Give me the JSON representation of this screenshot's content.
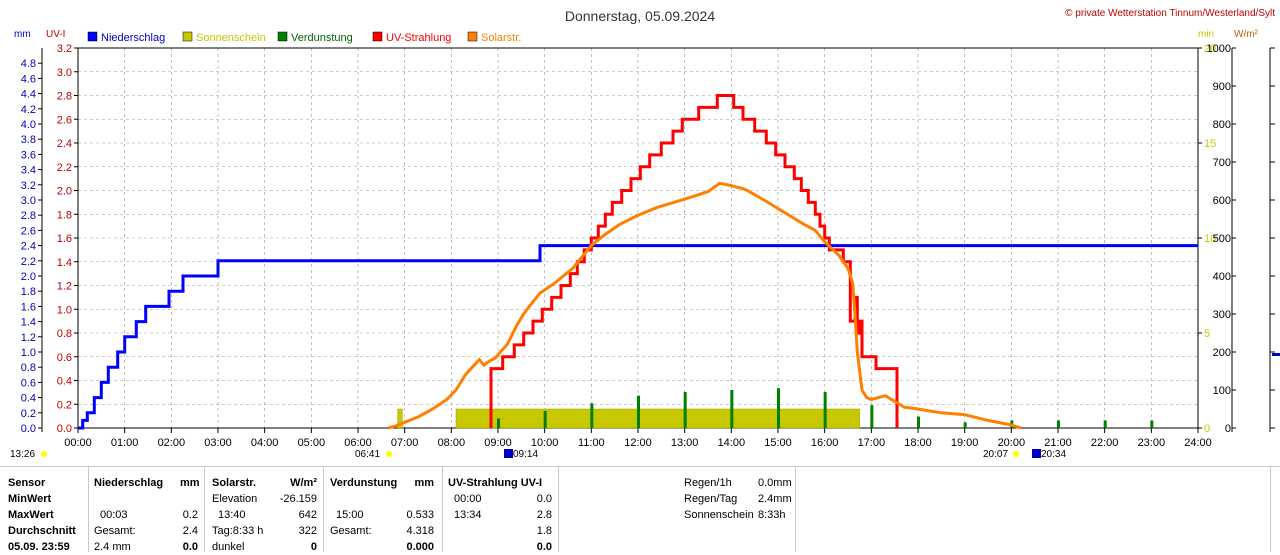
{
  "header": {
    "title": "Donnerstag, 05.09.2024",
    "copyright": "© private Wetterstation Tinnum/Westerland/Sylt",
    "unit_mm": "mm",
    "unit_uvi": "UV-I",
    "unit_min": "min",
    "unit_wm2": "W/m²"
  },
  "legend": [
    {
      "label": "Niederschlag",
      "color": "#0000ff",
      "text_color": "#0000c0"
    },
    {
      "label": "Sonnenschein",
      "color": "#c8c800",
      "text_color": "#c8c800"
    },
    {
      "label": "Verdunstung",
      "color": "#008000",
      "text_color": "#006400"
    },
    {
      "label": "UV-Strahlung",
      "color": "#ff0000",
      "text_color": "#ff0000"
    },
    {
      "label": "Solarstr.",
      "color": "#ff8000",
      "text_color": "#ff8000"
    }
  ],
  "chart_data": {
    "type": "line",
    "title": "Donnerstag, 05.09.2024",
    "x_ticks": [
      "00:00",
      "01:00",
      "02:00",
      "03:00",
      "04:00",
      "05:00",
      "06:00",
      "07:00",
      "08:00",
      "09:00",
      "10:00",
      "11:00",
      "12:00",
      "13:00",
      "14:00",
      "15:00",
      "16:00",
      "17:00",
      "18:00",
      "19:00",
      "20:00",
      "21:00",
      "22:00",
      "23:00",
      "24:00"
    ],
    "xlim_hours": [
      0,
      24
    ],
    "axes": {
      "mm": {
        "ylim": [
          0,
          5.0
        ],
        "ticks": [
          "0.0",
          "0.2",
          "0.4",
          "0.6",
          "0.8",
          "1.0",
          "1.2",
          "1.4",
          "1.6",
          "1.8",
          "2.0",
          "2.2",
          "2.4",
          "2.6",
          "2.8",
          "3.0",
          "3.2",
          "3.4",
          "3.6",
          "3.8",
          "4.0",
          "4.2",
          "4.4",
          "4.6",
          "4.8"
        ]
      },
      "uvi": {
        "ylim": [
          0,
          3.2
        ],
        "ticks": [
          "0.0",
          "0.2",
          "0.4",
          "0.6",
          "0.8",
          "1.0",
          "1.2",
          "1.4",
          "1.6",
          "1.8",
          "2.0",
          "2.2",
          "2.4",
          "2.6",
          "2.8",
          "3.0",
          "3.2"
        ]
      },
      "min": {
        "ylim": [
          0,
          20
        ],
        "ticks": [
          "0",
          "5",
          "10",
          "15",
          "20"
        ]
      },
      "wm2": {
        "ylim": [
          0,
          1000
        ],
        "ticks": [
          "0",
          "100",
          "200",
          "300",
          "400",
          "500",
          "600",
          "700",
          "800",
          "900",
          "1000"
        ]
      }
    },
    "series": [
      {
        "name": "Niederschlag",
        "axis": "mm",
        "step": true,
        "points": [
          [
            0,
            0
          ],
          [
            0.1,
            0.1
          ],
          [
            0.2,
            0.2
          ],
          [
            0.35,
            0.4
          ],
          [
            0.5,
            0.6
          ],
          [
            0.65,
            0.8
          ],
          [
            0.85,
            1.0
          ],
          [
            1.0,
            1.2
          ],
          [
            1.25,
            1.4
          ],
          [
            1.45,
            1.6
          ],
          [
            1.95,
            1.8
          ],
          [
            2.25,
            2.0
          ],
          [
            3.0,
            2.2
          ],
          [
            9.9,
            2.4
          ],
          [
            24,
            2.4
          ]
        ]
      },
      {
        "name": "UV-Strahlung",
        "axis": "uvi",
        "step": true,
        "points": [
          [
            8.85,
            0
          ],
          [
            8.85,
            0.5
          ],
          [
            9.1,
            0.6
          ],
          [
            9.35,
            0.7
          ],
          [
            9.55,
            0.8
          ],
          [
            9.75,
            0.9
          ],
          [
            9.95,
            1.0
          ],
          [
            10.15,
            1.1
          ],
          [
            10.35,
            1.2
          ],
          [
            10.55,
            1.3
          ],
          [
            10.7,
            1.4
          ],
          [
            10.85,
            1.5
          ],
          [
            11.0,
            1.6
          ],
          [
            11.15,
            1.7
          ],
          [
            11.3,
            1.8
          ],
          [
            11.45,
            1.9
          ],
          [
            11.65,
            2.0
          ],
          [
            11.85,
            2.1
          ],
          [
            12.05,
            2.2
          ],
          [
            12.25,
            2.3
          ],
          [
            12.5,
            2.4
          ],
          [
            12.75,
            2.5
          ],
          [
            12.95,
            2.6
          ],
          [
            13.3,
            2.7
          ],
          [
            13.7,
            2.8
          ],
          [
            14.05,
            2.7
          ],
          [
            14.25,
            2.6
          ],
          [
            14.5,
            2.5
          ],
          [
            14.75,
            2.4
          ],
          [
            14.95,
            2.3
          ],
          [
            15.15,
            2.2
          ],
          [
            15.35,
            2.1
          ],
          [
            15.5,
            2.0
          ],
          [
            15.65,
            1.9
          ],
          [
            15.8,
            1.8
          ],
          [
            15.9,
            1.7
          ],
          [
            16.0,
            1.6
          ],
          [
            16.1,
            1.5
          ],
          [
            16.4,
            1.4
          ],
          [
            16.55,
            1.2
          ],
          [
            16.55,
            0.9
          ],
          [
            16.65,
            1.1
          ],
          [
            16.7,
            0.8
          ],
          [
            16.75,
            0.9
          ],
          [
            16.8,
            0.6
          ],
          [
            16.9,
            0.6
          ],
          [
            17.1,
            0.5
          ],
          [
            17.45,
            0.5
          ],
          [
            17.55,
            0.2
          ],
          [
            17.55,
            0
          ]
        ]
      },
      {
        "name": "Solarstr.",
        "axis": "wm2",
        "step": false,
        "points": [
          [
            6.65,
            0
          ],
          [
            6.8,
            5
          ],
          [
            7.0,
            15
          ],
          [
            7.3,
            30
          ],
          [
            7.6,
            50
          ],
          [
            7.9,
            75
          ],
          [
            8.1,
            100
          ],
          [
            8.3,
            140
          ],
          [
            8.45,
            160
          ],
          [
            8.6,
            180
          ],
          [
            8.7,
            165
          ],
          [
            8.8,
            175
          ],
          [
            8.95,
            185
          ],
          [
            9.05,
            200
          ],
          [
            9.2,
            220
          ],
          [
            9.4,
            270
          ],
          [
            9.55,
            300
          ],
          [
            9.7,
            325
          ],
          [
            9.9,
            355
          ],
          [
            10.2,
            380
          ],
          [
            10.4,
            400
          ],
          [
            10.6,
            420
          ],
          [
            10.8,
            450
          ],
          [
            11.0,
            480
          ],
          [
            11.3,
            510
          ],
          [
            11.6,
            535
          ],
          [
            12.0,
            560
          ],
          [
            12.4,
            580
          ],
          [
            12.8,
            595
          ],
          [
            13.2,
            610
          ],
          [
            13.5,
            622
          ],
          [
            13.75,
            644
          ],
          [
            14.0,
            638
          ],
          [
            14.3,
            628
          ],
          [
            14.7,
            600
          ],
          [
            15.1,
            570
          ],
          [
            15.5,
            540
          ],
          [
            15.8,
            520
          ],
          [
            16.0,
            490
          ],
          [
            16.3,
            455
          ],
          [
            16.5,
            420
          ],
          [
            16.6,
            380
          ],
          [
            16.65,
            300
          ],
          [
            16.7,
            200
          ],
          [
            16.8,
            100
          ],
          [
            16.9,
            80
          ],
          [
            17.0,
            75
          ],
          [
            17.3,
            85
          ],
          [
            17.5,
            70
          ],
          [
            17.7,
            55
          ],
          [
            18.0,
            50
          ],
          [
            18.5,
            40
          ],
          [
            19.0,
            35
          ],
          [
            19.5,
            20
          ],
          [
            20.0,
            8
          ],
          [
            20.2,
            0
          ]
        ]
      },
      {
        "name": "Sonnenschein",
        "axis": "min",
        "type": "bar",
        "bars": [
          [
            6.85,
            6.95,
            1.0
          ],
          [
            8.1,
            16.75,
            1.0
          ]
        ]
      },
      {
        "name": "Verdunstung",
        "axis": "min",
        "type": "spike",
        "spikes": [
          [
            9.0,
            0.5
          ],
          [
            10.0,
            0.9
          ],
          [
            11.0,
            1.3
          ],
          [
            12.0,
            1.7
          ],
          [
            13.0,
            1.9
          ],
          [
            14.0,
            2.0
          ],
          [
            15.0,
            2.1
          ],
          [
            16.0,
            1.9
          ],
          [
            17.0,
            1.2
          ],
          [
            18.0,
            0.6
          ],
          [
            19.0,
            0.3
          ],
          [
            20.0,
            0.4
          ],
          [
            21.0,
            0.4
          ],
          [
            22.0,
            0.4
          ],
          [
            23.0,
            0.4
          ]
        ]
      }
    ]
  },
  "sun_markers": {
    "sunrise": "06:41",
    "uv_start": "09:14",
    "sunset": "20:07",
    "uv_end": "20:34",
    "left_label": "13:26"
  },
  "table": {
    "col_sensor": [
      "Sensor",
      "MinWert",
      "MaxWert",
      "Durchschnitt",
      "05.09. 23:59"
    ],
    "nieder": {
      "head": "Niederschlag",
      "unit": "mm",
      "max_time": "00:03",
      "max_val": "0.2",
      "sum_label": "Gesamt:",
      "sum_val": "2.4",
      "last_a": "2.4 mm",
      "last_b": "0.0"
    },
    "solar": {
      "head": "Solarstr.",
      "unit": "W/m²",
      "min_label": "Elevation",
      "min_val": "-26.159",
      "max_time": "13:40",
      "max_val": "642",
      "avg_label": "Tag:8:33 h",
      "avg_val": "322",
      "last_a": "dunkel",
      "last_b": "0"
    },
    "verd": {
      "head": "Verdunstung",
      "unit": "mm",
      "max_time": "15:00",
      "max_val": "0.533",
      "sum_label": "Gesamt:",
      "sum_val": "4.318",
      "last_b": "0.000"
    },
    "uv": {
      "head": "UV-Strahlung UV-I",
      "min_time": "00:00",
      "min_val": "0.0",
      "max_time": "13:34",
      "max_val": "2.8",
      "avg_val": "1.8",
      "last_b": "0.0"
    },
    "stats": [
      {
        "label": "Regen/1h",
        "value": "0.0mm"
      },
      {
        "label": "Regen/Tag",
        "value": "2.4mm"
      },
      {
        "label": "Sonnenschein",
        "value": "8:33h"
      }
    ]
  }
}
